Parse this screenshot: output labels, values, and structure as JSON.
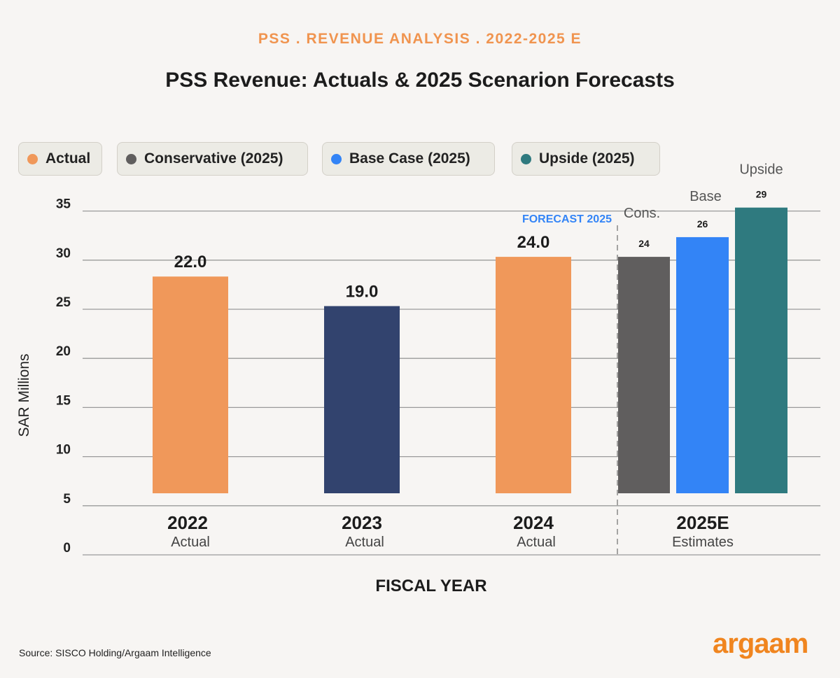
{
  "header": {
    "kicker": "PSS . REVENUE ANALYSIS . 2022-2025 E",
    "title": "PSS Revenue: Actuals & 2025 Scenarion Forecasts"
  },
  "legend": [
    {
      "label": "Actual",
      "color": "#f0985a"
    },
    {
      "label": "Conservative (2025)",
      "color": "#605e5e"
    },
    {
      "label": "Base Case (2025)",
      "color": "#3384f6"
    },
    {
      "label": "Upside (2025)",
      "color": "#2f7a7f"
    }
  ],
  "chart_data": {
    "type": "bar",
    "title": "PSS Revenue: Actuals & 2025 Scenarion Forecasts",
    "xlabel": "FISCAL YEAR",
    "ylabel": "SAR Millions",
    "ylim": [
      0,
      35
    ],
    "yticks": [
      "0",
      "5",
      "10",
      "15",
      "20",
      "25",
      "30",
      "35"
    ],
    "grid": true,
    "legend_position": "top-left",
    "categories": [
      {
        "label": "2022",
        "sub": "Actual"
      },
      {
        "label": "2023",
        "sub": "Actual"
      },
      {
        "label": "2024",
        "sub": "Actual"
      },
      {
        "label": "2025E",
        "sub": "Estimates"
      }
    ],
    "bars": [
      {
        "category": "2022",
        "value": 22.0,
        "label": "22.0",
        "color": "#f0985a"
      },
      {
        "category": "2023",
        "value": 19.0,
        "label": "19.0",
        "color": "#32436e"
      },
      {
        "category": "2024",
        "value": 24.0,
        "label": "24.0",
        "color": "#f0985a"
      },
      {
        "category": "2025E",
        "scenario": "Cons.",
        "value": 24,
        "label": "24",
        "color": "#605e5e"
      },
      {
        "category": "2025E",
        "scenario": "Base",
        "value": 26,
        "label": "26",
        "color": "#3384f6"
      },
      {
        "category": "2025E",
        "scenario": "Upside",
        "value": 29,
        "label": "29",
        "color": "#2f7a7f"
      }
    ],
    "annotation": "FORECAST 2025"
  },
  "footer": {
    "source": "Source: SISCO Holding/Argaam Intelligence",
    "logo": "argaam"
  }
}
